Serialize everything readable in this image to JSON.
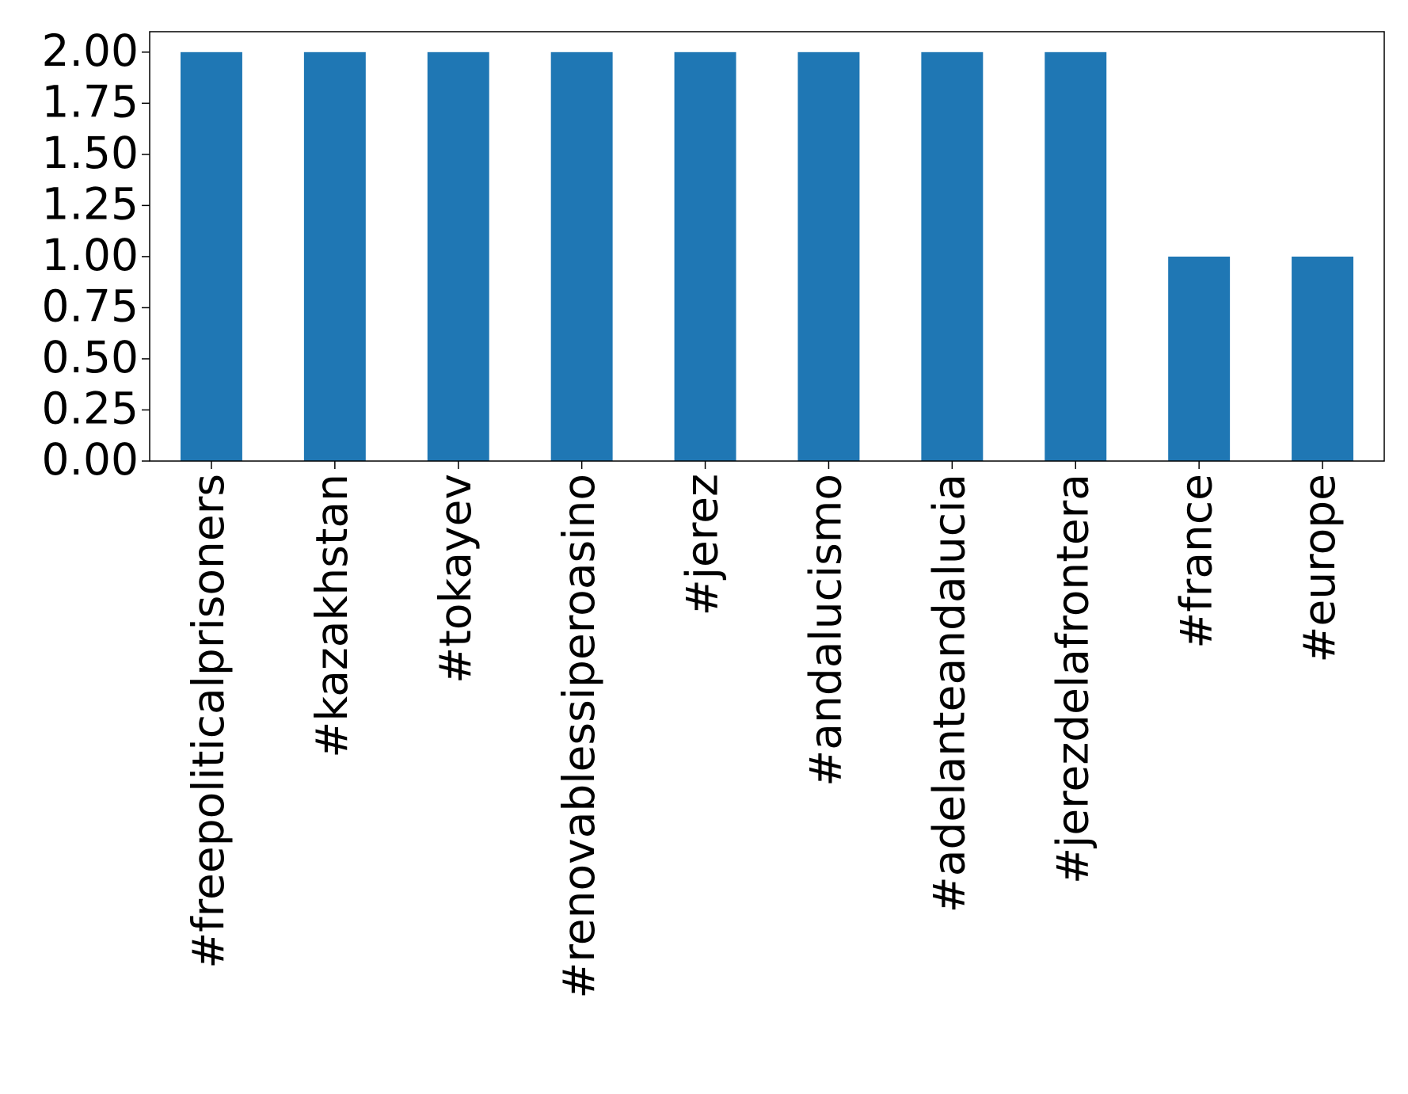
{
  "chart_data": {
    "type": "bar",
    "categories": [
      "#freepoliticalprisoners",
      "#kazakhstan",
      "#tokayev",
      "#renovablessiperoasino",
      "#jerez",
      "#andalucismo",
      "#adelanteandalucia",
      "#jerezdelafrontera",
      "#france",
      "#europe"
    ],
    "values": [
      2,
      2,
      2,
      2,
      2,
      2,
      2,
      2,
      1,
      1
    ],
    "color": "#1f77b4",
    "ylim": [
      0,
      2.1
    ],
    "yticks": [
      {
        "value": 0,
        "label": "0.00"
      },
      {
        "value": 0.25,
        "label": "0.25"
      },
      {
        "value": 0.5,
        "label": "0.50"
      },
      {
        "value": 0.75,
        "label": "0.75"
      },
      {
        "value": 1,
        "label": "1.00"
      },
      {
        "value": 1.25,
        "label": "1.25"
      },
      {
        "value": 1.5,
        "label": "1.50"
      },
      {
        "value": 1.75,
        "label": "1.75"
      },
      {
        "value": 2,
        "label": "2.00"
      }
    ],
    "grid": false
  }
}
